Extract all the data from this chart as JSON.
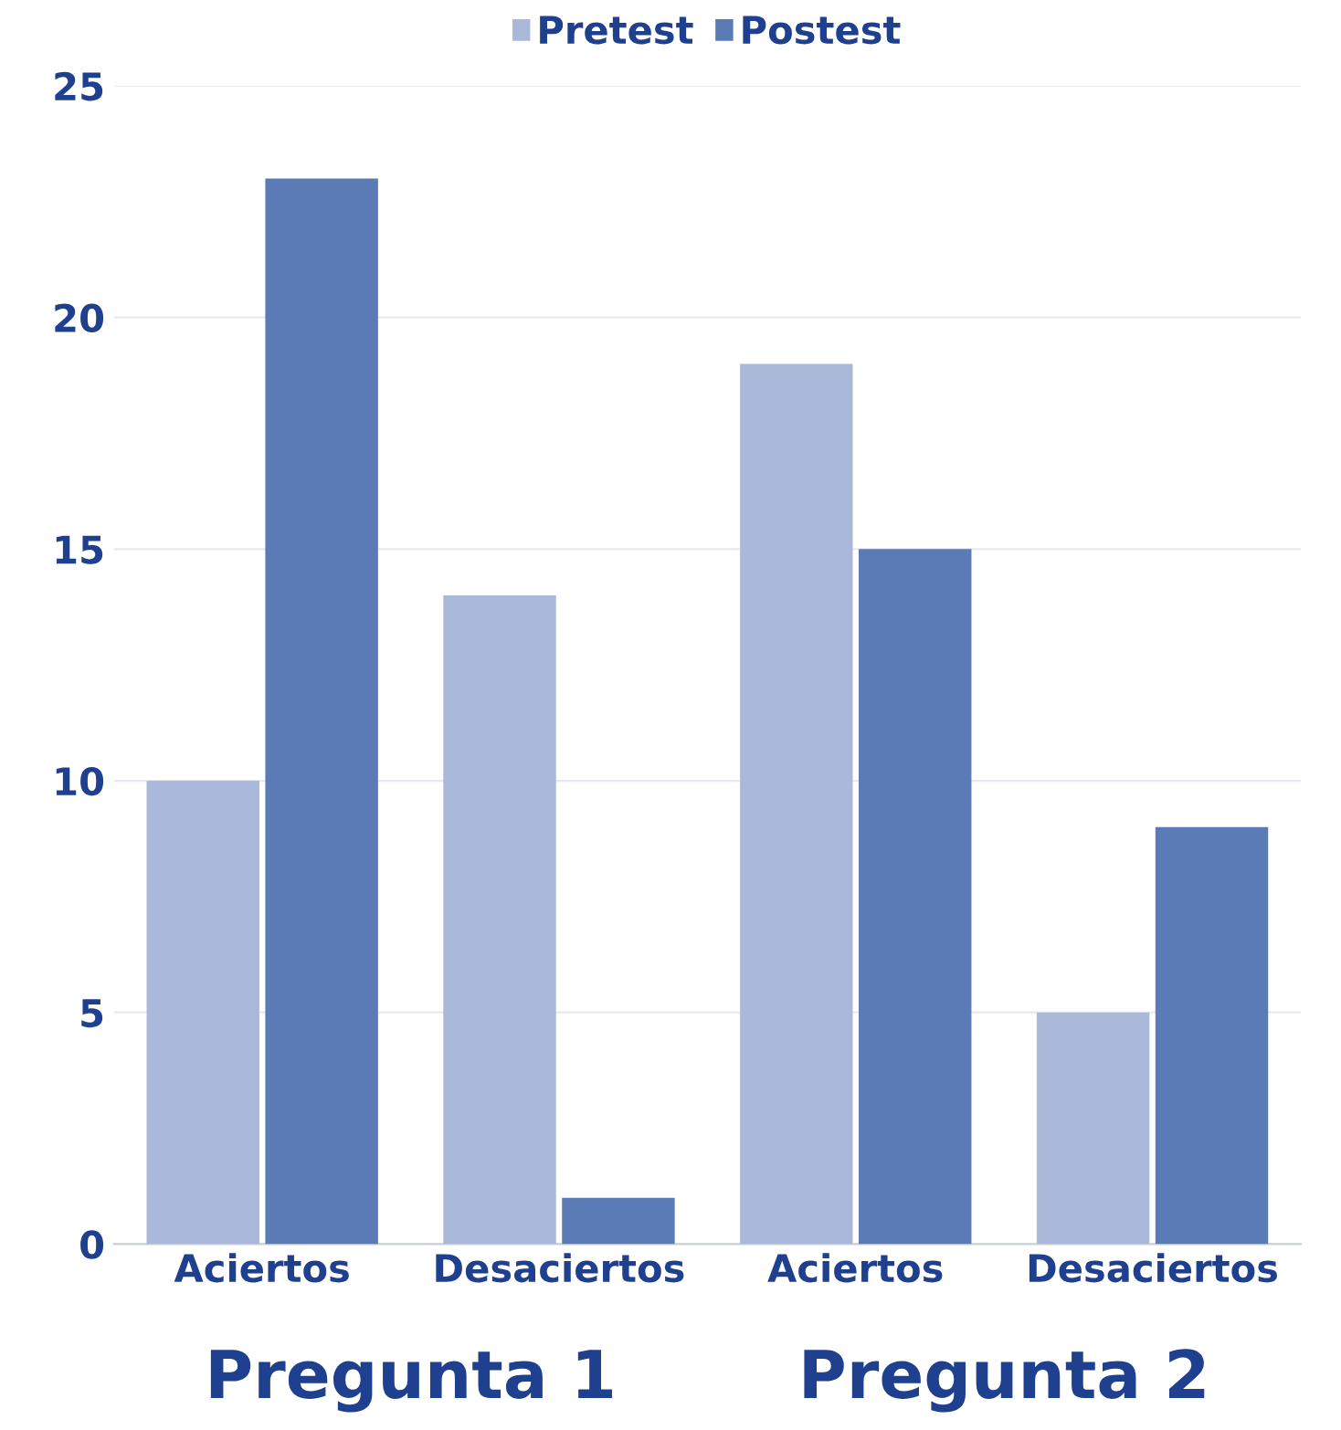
{
  "chart_data": {
    "type": "bar",
    "categories": [
      "Aciertos",
      "Desaciertos",
      "Aciertos",
      "Desaciertos"
    ],
    "series": [
      {
        "name": "Pretest",
        "color": "#aab9d9",
        "values": [
          10,
          14,
          19,
          5
        ]
      },
      {
        "name": "Postest",
        "color": "#5a7bb5",
        "values": [
          23,
          1,
          15,
          9
        ]
      }
    ],
    "ylim": [
      0,
      25
    ],
    "yticks": [
      0,
      5,
      10,
      15,
      20,
      25
    ],
    "grid": "y",
    "legend": "top",
    "annotations": [
      "Pregunta 1",
      "Pregunta 2"
    ]
  }
}
